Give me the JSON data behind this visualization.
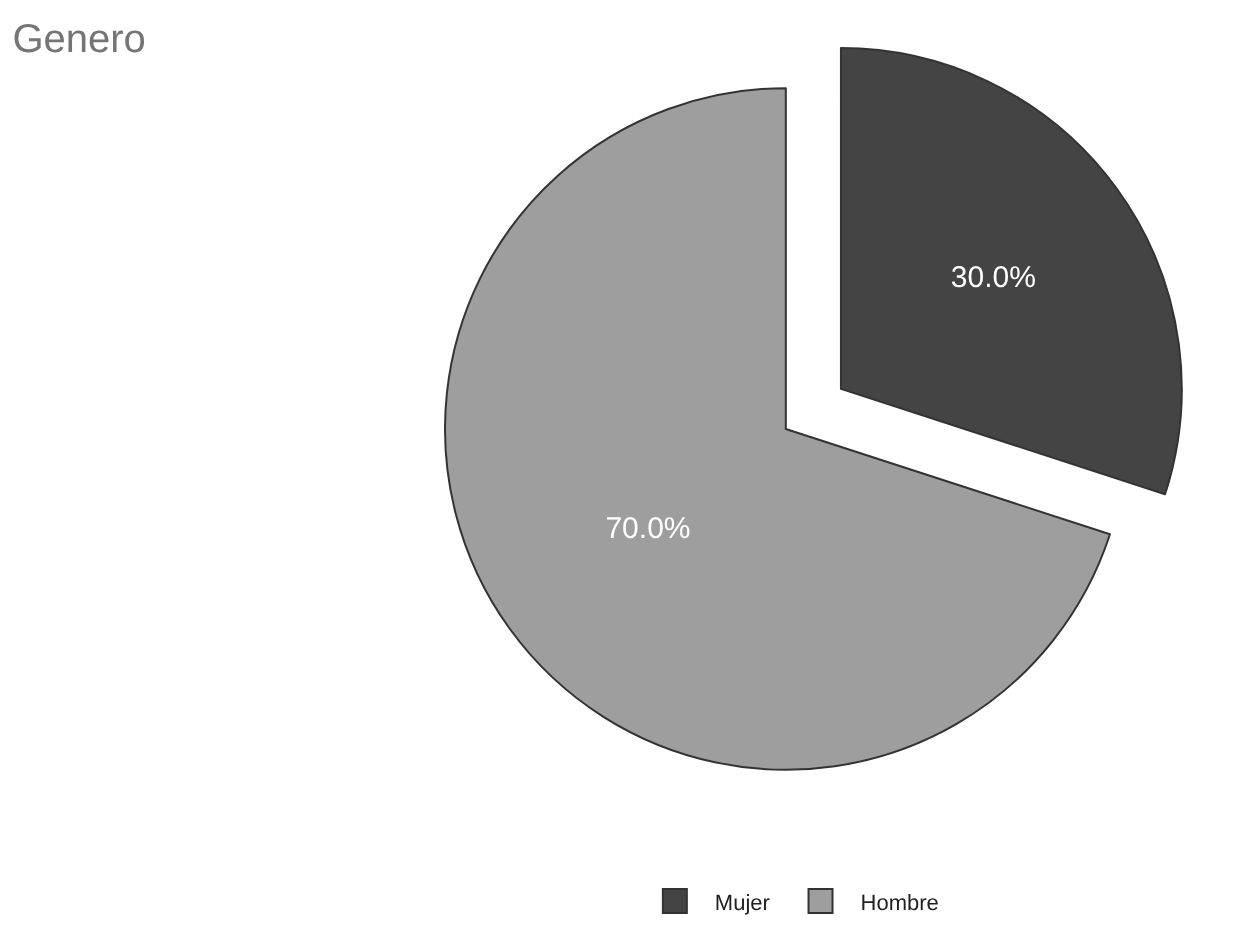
{
  "chart_data": {
    "type": "pie",
    "title": "Genero",
    "categories": [
      "Mujer",
      "Hombre"
    ],
    "values": [
      30,
      70
    ],
    "colors": [
      "#444444",
      "#9e9e9e"
    ],
    "value_labels": [
      "30.0%",
      "70.0%"
    ],
    "legend": "bottom"
  }
}
